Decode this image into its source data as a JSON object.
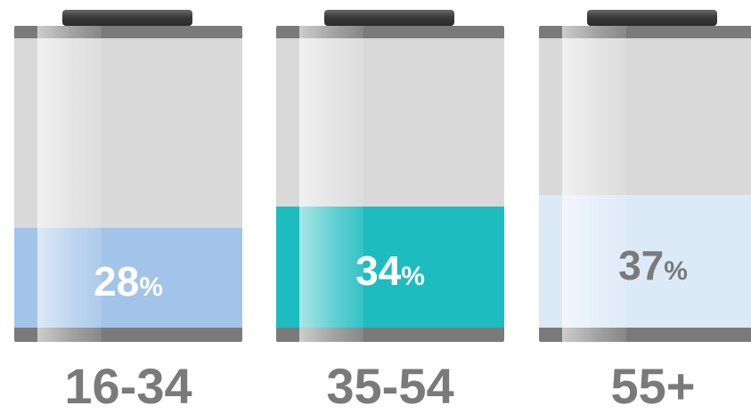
{
  "chart_data": {
    "type": "bar",
    "categories": [
      "16-34",
      "35-54",
      "55+"
    ],
    "values": [
      28,
      34,
      37
    ],
    "unit": "%",
    "ylim": [
      0,
      100
    ],
    "fill_colors": [
      "#a3c4e9",
      "#1dbcbf",
      "#dce9f7"
    ],
    "value_label_colors": [
      "#ffffff",
      "#ffffff",
      "#7a7a7a"
    ]
  },
  "colors": {
    "battery_body": "#d9d9d9",
    "battery_rim": "#7a7a7a",
    "category_label": "#7a7a7a"
  }
}
